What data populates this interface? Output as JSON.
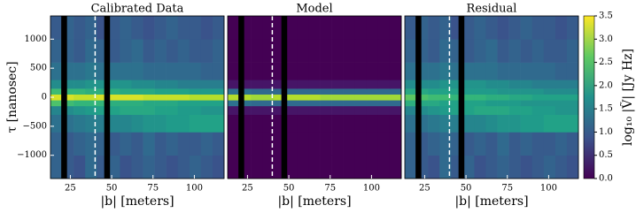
{
  "chart_data": [
    {
      "type": "heatmap",
      "title": "Calibrated Data",
      "xlabel": "|b| [meters]",
      "ylabel": "τ [nanosec]",
      "xlim": [
        13,
        118
      ],
      "ylim": [
        -1400,
        1400
      ],
      "xticks": [
        25,
        50,
        75,
        100
      ],
      "yticks": [
        {
          "value": -1000,
          "label": "−1000"
        },
        {
          "value": -500,
          "label": "−500"
        },
        0,
        500,
        1000
      ],
      "x_edges": [
        13,
        20,
        27,
        34,
        41,
        48,
        55,
        62,
        69,
        76,
        83,
        90,
        97,
        104,
        111,
        118
      ],
      "y_edges": [
        -1400,
        -1000,
        -600,
        -300,
        -150,
        -50,
        50,
        150,
        300,
        600,
        1000,
        1400
      ],
      "z": [
        [
          1.1,
          1.0,
          0.9,
          1.2,
          1.0,
          1.1,
          0.9,
          1.0,
          1.1,
          1.0,
          0.9,
          1.0,
          1.1,
          1.0,
          0.9
        ],
        [
          1.1,
          1.0,
          1.1,
          1.2,
          1.1,
          1.0,
          1.1,
          1.0,
          1.2,
          1.0,
          1.1,
          1.0,
          1.0,
          1.1,
          1.0
        ],
        [
          1.3,
          1.3,
          1.4,
          1.5,
          1.5,
          1.6,
          1.6,
          1.7,
          1.8,
          1.8,
          1.9,
          1.9,
          2.0,
          2.0,
          2.0
        ],
        [
          1.6,
          1.7,
          1.8,
          1.9,
          2.0,
          2.0,
          2.1,
          2.1,
          2.1,
          2.0,
          2.0,
          1.9,
          1.9,
          1.8,
          1.8
        ],
        [
          2.5,
          2.4,
          2.3,
          2.3,
          2.3,
          2.2,
          2.2,
          2.2,
          2.1,
          2.1,
          2.1,
          2.0,
          2.0,
          2.0,
          2.0
        ],
        [
          3.3,
          3.3,
          3.2,
          3.2,
          3.3,
          3.3,
          3.3,
          3.3,
          3.2,
          3.2,
          3.2,
          3.2,
          3.1,
          3.1,
          3.1
        ],
        [
          2.4,
          2.3,
          2.3,
          2.2,
          2.2,
          2.2,
          2.1,
          2.1,
          2.1,
          2.0,
          2.0,
          2.0,
          1.9,
          1.9,
          1.9
        ],
        [
          1.7,
          1.7,
          1.7,
          1.8,
          1.8,
          1.8,
          1.8,
          1.7,
          1.7,
          1.6,
          1.6,
          1.5,
          1.5,
          1.5,
          1.5
        ],
        [
          1.3,
          1.3,
          1.3,
          1.4,
          1.3,
          1.3,
          1.3,
          1.3,
          1.2,
          1.2,
          1.2,
          1.2,
          1.2,
          1.1,
          1.1
        ],
        [
          1.1,
          1.1,
          1.0,
          1.2,
          1.1,
          1.0,
          1.1,
          1.2,
          1.0,
          1.1,
          1.0,
          1.1,
          1.0,
          1.0,
          1.1
        ],
        [
          1.0,
          1.1,
          1.0,
          1.1,
          0.9,
          1.0,
          1.1,
          1.0,
          0.9,
          1.0,
          1.1,
          1.0,
          1.0,
          0.9,
          1.0
        ]
      ],
      "flagged": [
        [
          19.5,
          23
        ],
        [
          45.5,
          49
        ]
      ],
      "dashed_x": 40
    },
    {
      "type": "heatmap",
      "title": "Model",
      "xlabel": "|b| [meters]",
      "xlim": [
        13,
        118
      ],
      "ylim": [
        -1400,
        1400
      ],
      "xticks": [
        25,
        50,
        75,
        100
      ],
      "x_edges": [
        13,
        20,
        27,
        34,
        41,
        48,
        55,
        62,
        69,
        76,
        83,
        90,
        97,
        104,
        111,
        118
      ],
      "y_edges": [
        -1400,
        -1000,
        -600,
        -300,
        -150,
        -50,
        50,
        150,
        300,
        600,
        1000,
        1400
      ],
      "z": [
        [
          0,
          0,
          0,
          0,
          0,
          0,
          0,
          0,
          0,
          0,
          0,
          0,
          0,
          0,
          0
        ],
        [
          0,
          0,
          0,
          0,
          0,
          0,
          0,
          0,
          0,
          0,
          0,
          0,
          0,
          0,
          0
        ],
        [
          0,
          0,
          0,
          0,
          0,
          0,
          0,
          0,
          0,
          0,
          0,
          0,
          0,
          0,
          0
        ],
        [
          0.2,
          0.2,
          0.2,
          0.2,
          0.2,
          0.2,
          0.2,
          0.2,
          0.2,
          0.2,
          0.2,
          0.2,
          0.2,
          0.2,
          0.2
        ],
        [
          1.3,
          1.3,
          1.2,
          1.2,
          1.2,
          1.2,
          1.2,
          1.2,
          1.2,
          1.2,
          1.2,
          1.2,
          1.2,
          1.2,
          1.2
        ],
        [
          3.1,
          3.1,
          3.0,
          3.0,
          3.1,
          3.1,
          3.1,
          3.1,
          3.0,
          3.0,
          3.0,
          3.0,
          3.0,
          3.0,
          3.0
        ],
        [
          1.3,
          1.3,
          1.2,
          1.2,
          1.2,
          1.2,
          1.2,
          1.2,
          1.2,
          1.2,
          1.2,
          1.2,
          1.2,
          1.2,
          1.2
        ],
        [
          0.2,
          0.2,
          0.2,
          0.2,
          0.2,
          0.2,
          0.2,
          0.2,
          0.2,
          0.2,
          0.2,
          0.2,
          0.2,
          0.2,
          0.2
        ],
        [
          0,
          0,
          0,
          0,
          0,
          0,
          0,
          0,
          0,
          0,
          0,
          0,
          0,
          0,
          0
        ],
        [
          0,
          0,
          0,
          0,
          0,
          0,
          0,
          0,
          0,
          0,
          0,
          0,
          0,
          0,
          0
        ],
        [
          0,
          0,
          0,
          0,
          0,
          0,
          0,
          0,
          0,
          0,
          0,
          0,
          0,
          0,
          0
        ]
      ],
      "flagged": [
        [
          19.5,
          23
        ],
        [
          45.5,
          49
        ]
      ],
      "dashed_x": 40
    },
    {
      "type": "heatmap",
      "title": "Residual",
      "xlabel": "|b| [meters]",
      "xlim": [
        13,
        118
      ],
      "ylim": [
        -1400,
        1400
      ],
      "xticks": [
        25,
        50,
        75,
        100
      ],
      "x_edges": [
        13,
        20,
        27,
        34,
        41,
        48,
        55,
        62,
        69,
        76,
        83,
        90,
        97,
        104,
        111,
        118
      ],
      "y_edges": [
        -1400,
        -1000,
        -600,
        -300,
        -150,
        -50,
        50,
        150,
        300,
        600,
        1000,
        1400
      ],
      "z": [
        [
          1.1,
          1.0,
          0.9,
          1.2,
          1.0,
          1.1,
          0.9,
          1.0,
          1.1,
          1.0,
          0.9,
          1.0,
          1.1,
          1.0,
          0.9
        ],
        [
          1.1,
          1.0,
          1.1,
          1.2,
          1.1,
          1.0,
          1.1,
          1.0,
          1.2,
          1.0,
          1.1,
          1.0,
          1.0,
          1.1,
          1.0
        ],
        [
          1.3,
          1.3,
          1.4,
          1.5,
          1.5,
          1.6,
          1.6,
          1.7,
          1.8,
          1.8,
          1.9,
          1.9,
          2.0,
          2.0,
          2.0
        ],
        [
          1.6,
          1.7,
          1.8,
          1.9,
          2.0,
          2.0,
          2.1,
          2.1,
          2.1,
          2.0,
          2.0,
          1.9,
          1.9,
          1.8,
          1.8
        ],
        [
          2.2,
          2.1,
          2.1,
          2.0,
          2.0,
          2.0,
          2.0,
          1.9,
          1.9,
          1.9,
          1.8,
          1.8,
          1.8,
          1.8,
          1.8
        ],
        [
          2.6,
          2.5,
          2.4,
          2.4,
          2.3,
          2.3,
          2.3,
          2.2,
          2.2,
          2.1,
          2.1,
          2.0,
          2.0,
          2.0,
          2.0
        ],
        [
          2.1,
          2.1,
          2.0,
          2.0,
          2.0,
          1.9,
          1.9,
          1.9,
          1.8,
          1.8,
          1.8,
          1.8,
          1.7,
          1.7,
          1.7
        ],
        [
          1.7,
          1.7,
          1.7,
          1.8,
          1.8,
          1.8,
          1.8,
          1.7,
          1.7,
          1.6,
          1.6,
          1.5,
          1.5,
          1.5,
          1.5
        ],
        [
          1.3,
          1.3,
          1.3,
          1.4,
          1.3,
          1.3,
          1.3,
          1.3,
          1.2,
          1.2,
          1.2,
          1.2,
          1.2,
          1.1,
          1.1
        ],
        [
          1.1,
          1.1,
          1.0,
          1.2,
          1.1,
          1.0,
          1.1,
          1.2,
          1.0,
          1.1,
          1.0,
          1.1,
          1.0,
          1.0,
          1.1
        ],
        [
          1.0,
          1.1,
          1.0,
          1.1,
          0.9,
          1.0,
          1.1,
          1.0,
          0.9,
          1.0,
          1.1,
          1.0,
          1.0,
          0.9,
          1.0
        ]
      ],
      "flagged": [
        [
          19.5,
          23
        ],
        [
          45.5,
          49
        ]
      ],
      "dashed_x": 40,
      "colorbar": {
        "label": "log₁₀ |Ṽ| [Jy Hz]",
        "lim": [
          0,
          3.5
        ],
        "ticks": [
          {
            "value": 0,
            "label": "0.0"
          },
          0.5,
          {
            "value": 1,
            "label": "1.0"
          },
          1.5,
          {
            "value": 2,
            "label": "2.0"
          },
          2.5,
          {
            "value": 3,
            "label": "3.0"
          },
          3.5
        ]
      }
    }
  ]
}
